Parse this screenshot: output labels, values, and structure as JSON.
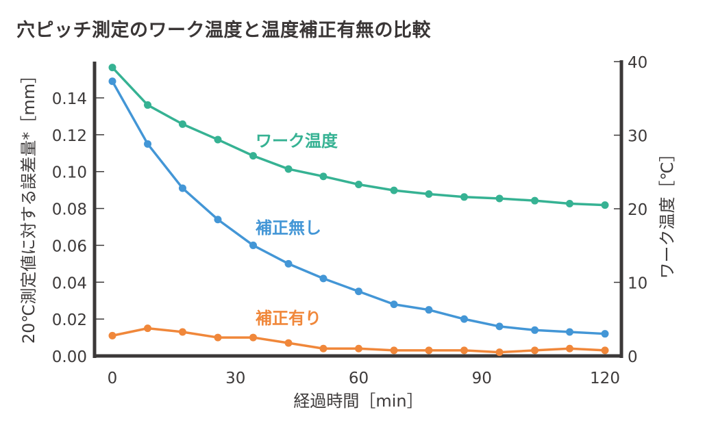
{
  "chart_data": {
    "type": "line",
    "title": "穴ピッチ測定のワーク温度と温度補正有無の比較",
    "xlabel": "経過時間［min］",
    "ylabel_left": "20℃測定値に対する誤差量*［mm］",
    "ylabel_right": "ワーク温度［℃］",
    "xlim": [
      0,
      120
    ],
    "ylim_left": [
      0,
      0.16
    ],
    "ylim_right": [
      0,
      40
    ],
    "x_ticks": [
      "0",
      "30",
      "60",
      "90",
      "120"
    ],
    "x_tick_values": [
      0,
      30,
      60,
      90,
      120
    ],
    "y_left_ticks": [
      "0.00",
      "0.02",
      "0.04",
      "0.06",
      "0.08",
      "0.10",
      "0.12",
      "0.14"
    ],
    "y_left_tick_values": [
      0,
      0.02,
      0.04,
      0.06,
      0.08,
      0.1,
      0.12,
      0.14
    ],
    "y_right_ticks": [
      "0",
      "10",
      "20",
      "30",
      "40"
    ],
    "y_right_tick_values": [
      0,
      10,
      20,
      30,
      40
    ],
    "grid": false,
    "x": [
      0,
      8.6,
      17.1,
      25.7,
      34.3,
      42.9,
      51.4,
      60.0,
      68.6,
      77.1,
      85.7,
      94.3,
      102.9,
      111.4,
      120
    ],
    "series": [
      {
        "name": "ワーク温度",
        "axis": "right",
        "color": "#36b293",
        "values": [
          39.2,
          34.1,
          31.5,
          29.4,
          27.2,
          25.4,
          24.4,
          23.3,
          22.5,
          22.0,
          21.6,
          21.4,
          21.1,
          20.7,
          20.5
        ]
      },
      {
        "name": "補正無し",
        "axis": "left",
        "color": "#4396d6",
        "values": [
          0.149,
          0.115,
          0.091,
          0.074,
          0.06,
          0.05,
          0.042,
          0.035,
          0.028,
          0.025,
          0.02,
          0.016,
          0.014,
          0.013,
          0.012
        ]
      },
      {
        "name": "補正有り",
        "axis": "left",
        "color": "#f0873a",
        "values": [
          0.011,
          0.015,
          0.013,
          0.01,
          0.01,
          0.007,
          0.004,
          0.004,
          0.003,
          0.003,
          0.003,
          0.002,
          0.003,
          0.004,
          0.003
        ]
      }
    ],
    "legend": "inline labels near each line",
    "axis_color": "#3b3838"
  }
}
